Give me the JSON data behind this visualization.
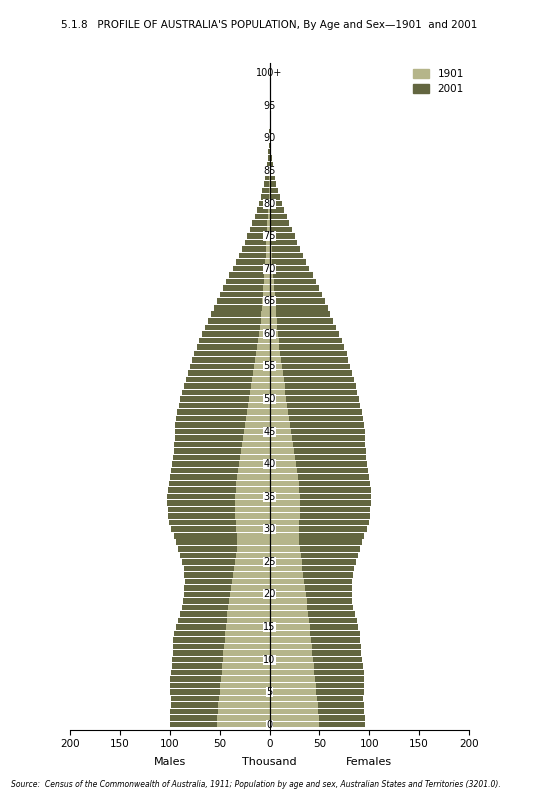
{
  "title": "5.1.8   PROFILE OF AUSTRALIA'S POPULATION, By Age and Sex—1901  and 2001",
  "source": "Source:  Census of the Commonwealth of Australia, 1911; Population by age and sex, Australian States and Territories (3201.0).",
  "color_1901": "#b5b58a",
  "color_2001": "#636640",
  "xlim": 200,
  "xlabel_left": "Males",
  "xlabel_center": "Thousand",
  "xlabel_right": "Females",
  "ages": [
    0,
    1,
    2,
    3,
    4,
    5,
    6,
    7,
    8,
    9,
    10,
    11,
    12,
    13,
    14,
    15,
    16,
    17,
    18,
    19,
    20,
    21,
    22,
    23,
    24,
    25,
    26,
    27,
    28,
    29,
    30,
    31,
    32,
    33,
    34,
    35,
    36,
    37,
    38,
    39,
    40,
    41,
    42,
    43,
    44,
    45,
    46,
    47,
    48,
    49,
    50,
    51,
    52,
    53,
    54,
    55,
    56,
    57,
    58,
    59,
    60,
    61,
    62,
    63,
    64,
    65,
    66,
    67,
    68,
    69,
    70,
    71,
    72,
    73,
    74,
    75,
    76,
    77,
    78,
    79,
    80,
    81,
    82,
    83,
    84,
    85,
    86,
    87,
    88,
    89,
    90,
    91,
    92,
    93,
    94,
    95,
    96,
    97,
    98,
    99,
    100
  ],
  "male_1901": [
    53,
    53,
    52,
    52,
    51,
    50,
    50,
    49,
    48,
    48,
    47,
    47,
    46,
    45,
    45,
    44,
    43,
    43,
    42,
    41,
    40,
    39,
    38,
    37,
    36,
    35,
    34,
    33,
    33,
    33,
    34,
    34,
    35,
    35,
    35,
    35,
    34,
    34,
    33,
    32,
    31,
    30,
    29,
    28,
    27,
    26,
    25,
    24,
    23,
    22,
    21,
    20,
    19,
    18,
    17,
    16,
    15,
    14,
    13,
    12,
    11,
    10,
    9,
    9,
    8,
    8,
    7,
    7,
    6,
    6,
    5,
    5,
    4,
    4,
    4,
    3,
    3,
    3,
    2,
    2,
    2,
    1,
    1,
    1,
    1,
    1,
    0,
    0,
    0,
    0,
    0,
    0,
    0,
    0,
    0,
    0,
    0,
    0,
    0,
    0,
    0
  ],
  "male_2001": [
    100,
    100,
    100,
    99,
    99,
    100,
    100,
    100,
    99,
    98,
    98,
    97,
    97,
    97,
    96,
    94,
    92,
    90,
    88,
    87,
    86,
    86,
    85,
    86,
    86,
    88,
    90,
    92,
    94,
    96,
    99,
    101,
    102,
    102,
    103,
    103,
    102,
    101,
    100,
    99,
    98,
    97,
    96,
    96,
    95,
    95,
    95,
    94,
    93,
    91,
    90,
    88,
    86,
    84,
    82,
    80,
    78,
    76,
    73,
    71,
    68,
    65,
    62,
    59,
    56,
    53,
    50,
    47,
    44,
    41,
    37,
    34,
    31,
    28,
    25,
    23,
    20,
    18,
    15,
    13,
    11,
    9,
    8,
    6,
    5,
    4,
    3,
    2,
    2,
    1,
    1,
    1,
    0,
    0,
    0,
    0,
    0,
    0,
    0,
    0,
    0
  ],
  "female_1901": [
    50,
    50,
    49,
    49,
    48,
    47,
    47,
    46,
    45,
    45,
    44,
    43,
    43,
    42,
    41,
    41,
    40,
    39,
    38,
    38,
    37,
    36,
    35,
    34,
    33,
    33,
    32,
    31,
    30,
    30,
    30,
    30,
    31,
    31,
    31,
    31,
    30,
    30,
    29,
    28,
    27,
    26,
    25,
    24,
    23,
    22,
    21,
    20,
    19,
    18,
    17,
    16,
    16,
    15,
    14,
    13,
    12,
    11,
    10,
    10,
    9,
    8,
    8,
    7,
    7,
    6,
    6,
    5,
    5,
    4,
    4,
    3,
    3,
    3,
    2,
    2,
    2,
    2,
    1,
    1,
    1,
    1,
    1,
    0,
    0,
    0,
    0,
    0,
    0,
    0,
    0,
    0,
    0,
    0,
    0,
    0,
    0,
    0,
    0,
    0,
    0
  ],
  "female_2001": [
    96,
    96,
    95,
    95,
    94,
    95,
    95,
    95,
    95,
    94,
    93,
    92,
    92,
    91,
    91,
    89,
    88,
    86,
    84,
    83,
    83,
    83,
    83,
    84,
    85,
    87,
    89,
    91,
    93,
    95,
    98,
    100,
    101,
    101,
    102,
    102,
    102,
    101,
    100,
    99,
    98,
    97,
    97,
    96,
    96,
    96,
    95,
    94,
    93,
    91,
    90,
    88,
    87,
    85,
    83,
    81,
    79,
    78,
    75,
    73,
    70,
    67,
    64,
    61,
    59,
    56,
    53,
    50,
    47,
    44,
    40,
    37,
    34,
    31,
    28,
    26,
    23,
    20,
    18,
    15,
    13,
    11,
    9,
    7,
    6,
    5,
    4,
    3,
    2,
    2,
    1,
    1,
    1,
    0,
    0,
    0,
    0,
    0,
    0,
    0,
    0
  ]
}
